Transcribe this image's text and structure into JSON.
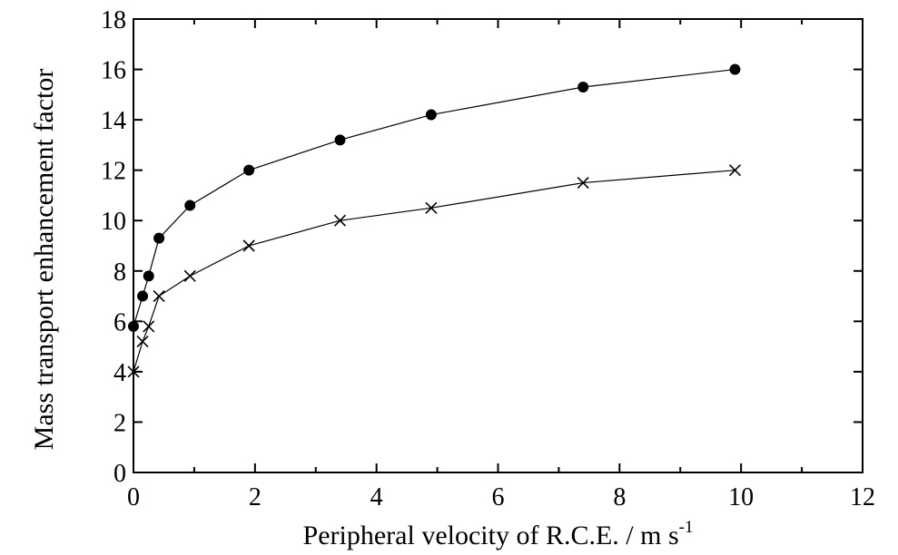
{
  "chart_data": {
    "type": "scatter",
    "xlabel": "Peripheral velocity of R.C.E. / m s",
    "xlabel_superscript": "-1",
    "ylabel": "Mass transport enhancement factor",
    "xlim": [
      0,
      12
    ],
    "ylim": [
      0,
      18
    ],
    "xticks": [
      "0",
      "2",
      "4",
      "6",
      "8",
      "10",
      "12"
    ],
    "yticks": [
      "0",
      "2",
      "4",
      "6",
      "8",
      "10",
      "12",
      "14",
      "16",
      "18"
    ],
    "grid": false,
    "legend": "none",
    "series": [
      {
        "marker": "filled-circle",
        "color": "#000000",
        "points": [
          {
            "x": 0.0,
            "y": 5.8
          },
          {
            "x": 0.15,
            "y": 7.0
          },
          {
            "x": 0.25,
            "y": 7.8
          },
          {
            "x": 0.42,
            "y": 9.3
          },
          {
            "x": 0.93,
            "y": 10.6
          },
          {
            "x": 1.9,
            "y": 12.0
          },
          {
            "x": 3.4,
            "y": 13.2
          },
          {
            "x": 4.9,
            "y": 14.2
          },
          {
            "x": 7.4,
            "y": 15.3
          },
          {
            "x": 9.9,
            "y": 16.0
          }
        ]
      },
      {
        "marker": "cross",
        "color": "#000000",
        "points": [
          {
            "x": 0.0,
            "y": 4.0
          },
          {
            "x": 0.15,
            "y": 5.2
          },
          {
            "x": 0.25,
            "y": 5.8
          },
          {
            "x": 0.42,
            "y": 7.0
          },
          {
            "x": 0.93,
            "y": 7.8
          },
          {
            "x": 1.9,
            "y": 9.0
          },
          {
            "x": 3.4,
            "y": 10.0
          },
          {
            "x": 4.9,
            "y": 10.5
          },
          {
            "x": 7.4,
            "y": 11.5
          },
          {
            "x": 9.9,
            "y": 12.0
          }
        ]
      }
    ]
  }
}
